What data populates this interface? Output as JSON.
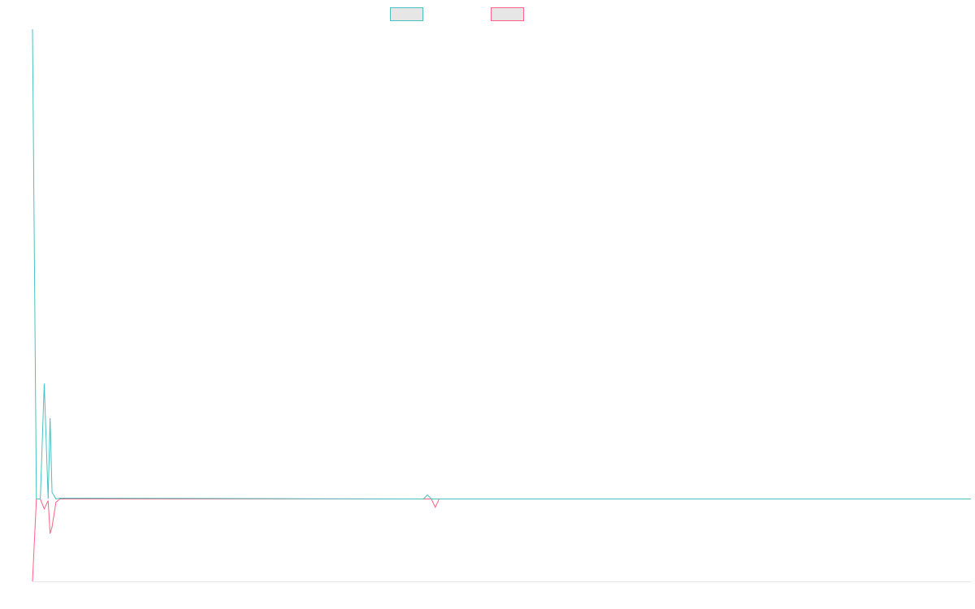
{
  "colors": {
    "series_1": "#4bc0c0",
    "series_2": "#ff6384",
    "legend_fill": "#e6e6e6",
    "axis": "#e5e5e5"
  },
  "chart_data": {
    "type": "line",
    "title": "",
    "xlabel": "",
    "ylabel": "",
    "grid": false,
    "legend": "top-center",
    "x_range": [
      0,
      240
    ],
    "ylim": [
      -100,
      570
    ],
    "series": [
      {
        "color_key": "series_1",
        "values": [
          {
            "x": 0,
            "y": 570
          },
          {
            "x": 1,
            "y": 0
          },
          {
            "x": 2,
            "y": 0
          },
          {
            "x": 3,
            "y": 140
          },
          {
            "x": 4,
            "y": 0
          },
          {
            "x": 4.5,
            "y": 98
          },
          {
            "x": 5,
            "y": 8
          },
          {
            "x": 6,
            "y": 0
          },
          {
            "x": 7,
            "y": 1
          },
          {
            "x": 100,
            "y": 0
          },
          {
            "x": 101,
            "y": 5
          },
          {
            "x": 102,
            "y": 0
          },
          {
            "x": 240,
            "y": 0
          }
        ]
      },
      {
        "color_key": "series_2",
        "values": [
          {
            "x": 0,
            "y": -100
          },
          {
            "x": 1,
            "y": 0
          },
          {
            "x": 2,
            "y": 0
          },
          {
            "x": 3,
            "y": -12
          },
          {
            "x": 4,
            "y": -2
          },
          {
            "x": 4.5,
            "y": -42
          },
          {
            "x": 5,
            "y": -34
          },
          {
            "x": 6,
            "y": -4
          },
          {
            "x": 7,
            "y": 0
          },
          {
            "x": 102,
            "y": 0
          },
          {
            "x": 103,
            "y": -10
          },
          {
            "x": 104,
            "y": 0
          },
          {
            "x": 240,
            "y": 0
          }
        ]
      }
    ]
  }
}
